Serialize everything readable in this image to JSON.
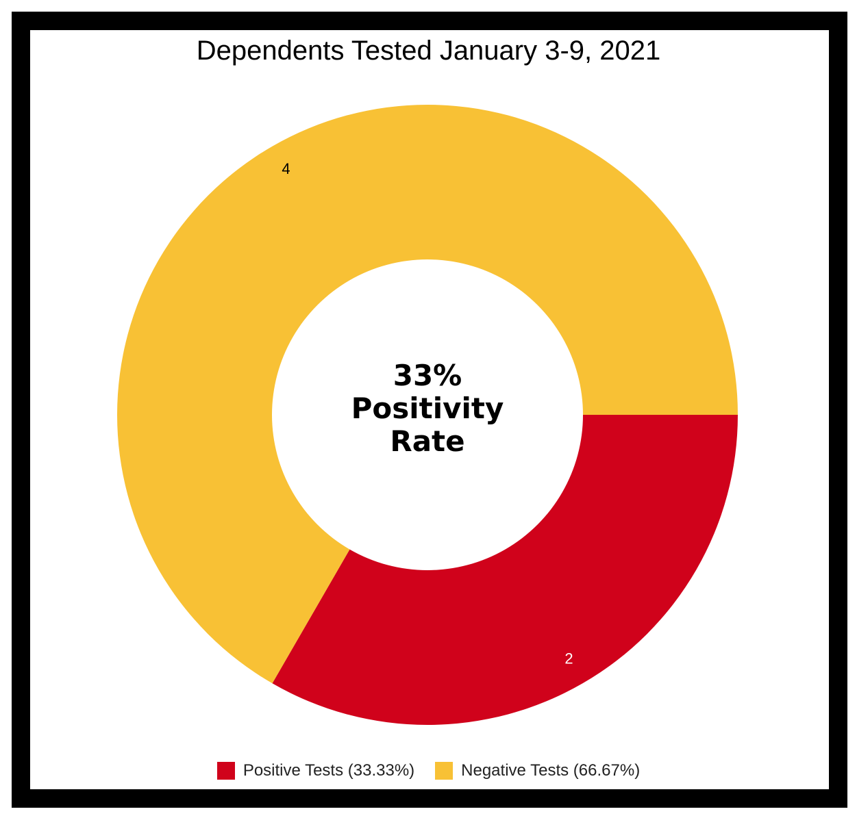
{
  "chart_data": {
    "type": "pie",
    "title": "Dependents Tested January 3-9, 2021",
    "donut": true,
    "center_label": [
      "33%",
      "Positivity",
      "Rate"
    ],
    "slices": [
      {
        "label": "Positive Tests (33.33%)",
        "value": 2,
        "color": "#D0021B",
        "data_label_color": "#ffffff"
      },
      {
        "label": "Negative Tests (66.67%)",
        "value": 4,
        "color": "#F8C135",
        "data_label_color": "#000000"
      }
    ],
    "legend_position": "bottom"
  }
}
